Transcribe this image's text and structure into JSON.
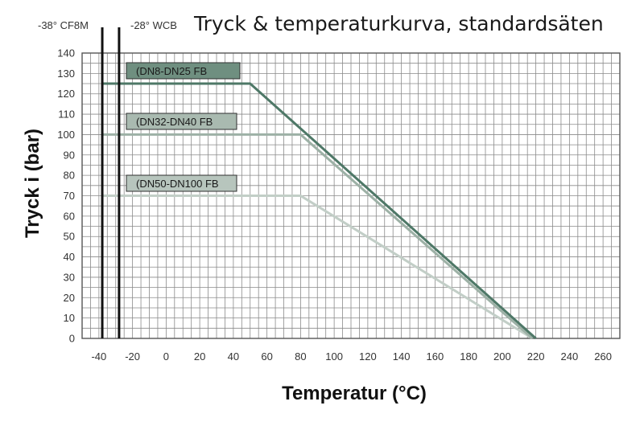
{
  "chart_data": {
    "type": "line",
    "title": "Tryck & temperaturkurva, standardsäten",
    "xlabel": "Temperatur (°C)",
    "ylabel": "Tryck i (bar)",
    "xlim": [
      -50,
      270
    ],
    "ylim": [
      0,
      140
    ],
    "x_ticks": [
      -40,
      -20,
      0,
      20,
      40,
      60,
      80,
      100,
      120,
      140,
      160,
      180,
      200,
      220,
      240,
      260
    ],
    "y_ticks": [
      0,
      10,
      20,
      30,
      40,
      50,
      60,
      70,
      80,
      90,
      100,
      110,
      120,
      130,
      140
    ],
    "grid": true,
    "series": [
      {
        "name": "(DN8-DN25 FB",
        "color": "#4e7867",
        "label_bg": "#6f8f80",
        "x": [
          -38,
          50,
          220
        ],
        "y": [
          125,
          125,
          0
        ]
      },
      {
        "name": "(DN32-DN40 FB",
        "color": "#9db1a6",
        "label_bg": "#a9bab0",
        "x": [
          -38,
          80,
          218
        ],
        "y": [
          100,
          100,
          0
        ]
      },
      {
        "name": "(DN50-DN100 FB",
        "color": "#c2cec7",
        "label_bg": "#b7c5bd",
        "x": [
          -38,
          80,
          218
        ],
        "y": [
          70,
          70,
          0
        ]
      }
    ],
    "vertical_markers": [
      {
        "x": -38,
        "label": "-38° CF8M"
      },
      {
        "x": -28,
        "label": "-28° WCB"
      }
    ]
  }
}
